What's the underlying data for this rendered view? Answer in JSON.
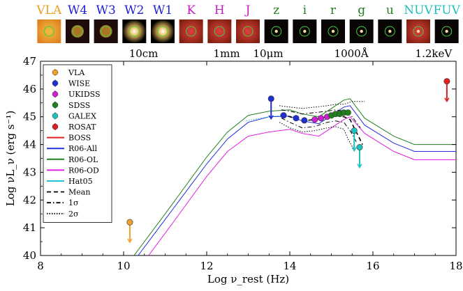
{
  "chart_data": {
    "type": "line",
    "xlabel": "Log ν_rest (Hz)",
    "ylabel": "Log νL_ν (erg s⁻¹)",
    "xlim": [
      8,
      18
    ],
    "ylim": [
      40,
      47
    ],
    "x_ticks": [
      "8",
      "10",
      "12",
      "14",
      "16",
      "18"
    ],
    "y_ticks": [
      "40",
      "41",
      "42",
      "43",
      "44",
      "45",
      "46",
      "47"
    ],
    "top_axis_labels": [
      {
        "x": 10.48,
        "label": "10cm"
      },
      {
        "x": 12.48,
        "label": "1mm"
      },
      {
        "x": 13.48,
        "label": "10μm"
      },
      {
        "x": 15.48,
        "label": "1000Å"
      },
      {
        "x": 17.46,
        "label": "1.2keV"
      }
    ],
    "bands": [
      {
        "label": "VLA",
        "color": "#e8a020"
      },
      {
        "label": "W4",
        "color": "#2020d0"
      },
      {
        "label": "W3",
        "color": "#2020d0"
      },
      {
        "label": "W2",
        "color": "#2020d0"
      },
      {
        "label": "W1",
        "color": "#2020d0"
      },
      {
        "label": "K",
        "color": "#c020c0"
      },
      {
        "label": "H",
        "color": "#c020c0"
      },
      {
        "label": "J",
        "color": "#c020c0"
      },
      {
        "label": "z",
        "color": "#208020"
      },
      {
        "label": "i",
        "color": "#208020"
      },
      {
        "label": "r",
        "color": "#208020"
      },
      {
        "label": "g",
        "color": "#208020"
      },
      {
        "label": "u",
        "color": "#208020"
      },
      {
        "label": "NUV",
        "color": "#20c0c0"
      },
      {
        "label": "FUV",
        "color": "#20c0c0"
      }
    ],
    "legend": {
      "placement": "left",
      "entries": [
        {
          "label": "VLA",
          "kind": "point",
          "color": "#f0a030"
        },
        {
          "label": "WISE",
          "kind": "point",
          "color": "#2030d0"
        },
        {
          "label": "UKIDSS",
          "kind": "point",
          "color": "#d020d0"
        },
        {
          "label": "SDSS",
          "kind": "point",
          "color": "#208020"
        },
        {
          "label": "GALEX",
          "kind": "point",
          "color": "#20c0c0"
        },
        {
          "label": "ROSAT",
          "kind": "point",
          "color": "#e02020"
        },
        {
          "label": "BOSS",
          "kind": "line",
          "color": "#e02020",
          "dash": "solid"
        },
        {
          "label": "R06-All",
          "kind": "line",
          "color": "#2030e0",
          "dash": "solid"
        },
        {
          "label": "R06-OL",
          "kind": "line",
          "color": "#208020",
          "dash": "solid"
        },
        {
          "label": "R06-OD",
          "kind": "line",
          "color": "#e020e0",
          "dash": "solid"
        },
        {
          "label": "Hat05",
          "kind": "line",
          "color": "#20c0d0",
          "dash": "solid"
        },
        {
          "label": "Mean",
          "kind": "line",
          "color": "#000000",
          "dash": "dashed"
        },
        {
          "label": "1σ",
          "kind": "line",
          "color": "#000000",
          "dash": "dashdot"
        },
        {
          "label": "2σ",
          "kind": "line",
          "color": "#000000",
          "dash": "dotted"
        }
      ]
    },
    "points": [
      {
        "survey": "VLA",
        "color": "#f0a030",
        "x": 10.15,
        "y": 41.2,
        "upper_limit": true
      },
      {
        "survey": "WISE",
        "color": "#2030d0",
        "x": 13.55,
        "y": 45.65,
        "upper_limit": true
      },
      {
        "survey": "WISE",
        "color": "#2030d0",
        "x": 13.85,
        "y": 45.05,
        "upper_limit": false
      },
      {
        "survey": "WISE",
        "color": "#2030d0",
        "x": 14.15,
        "y": 44.95,
        "upper_limit": false
      },
      {
        "survey": "WISE",
        "color": "#2030d0",
        "x": 14.35,
        "y": 44.87,
        "upper_limit": false
      },
      {
        "survey": "UKIDSS",
        "color": "#d020d0",
        "x": 14.6,
        "y": 44.9,
        "upper_limit": false
      },
      {
        "survey": "UKIDSS",
        "color": "#d020d0",
        "x": 14.75,
        "y": 44.95,
        "upper_limit": false
      },
      {
        "survey": "UKIDSS",
        "color": "#d020d0",
        "x": 14.9,
        "y": 45.0,
        "upper_limit": false
      },
      {
        "survey": "SDSS",
        "color": "#208020",
        "x": 15.0,
        "y": 45.05,
        "upper_limit": false
      },
      {
        "survey": "SDSS",
        "color": "#208020",
        "x": 15.1,
        "y": 45.1,
        "upper_limit": false
      },
      {
        "survey": "SDSS",
        "color": "#208020",
        "x": 15.2,
        "y": 45.1,
        "upper_limit": false
      },
      {
        "survey": "SDSS",
        "color": "#208020",
        "x": 15.3,
        "y": 45.15,
        "upper_limit": false
      },
      {
        "survey": "SDSS",
        "color": "#208020",
        "x": 15.4,
        "y": 45.15,
        "upper_limit": false
      },
      {
        "survey": "GALEX",
        "color": "#20c0c0",
        "x": 15.55,
        "y": 44.5,
        "upper_limit": true
      },
      {
        "survey": "GALEX",
        "color": "#20c0c0",
        "x": 15.68,
        "y": 43.9,
        "upper_limit": true
      },
      {
        "survey": "ROSAT",
        "color": "#e02020",
        "x": 17.78,
        "y": 46.28,
        "upper_limit": true
      }
    ],
    "lines": [
      {
        "name": "R06-All",
        "color": "#2030e0",
        "dash": "solid",
        "x": [
          10.35,
          11.0,
          12.0,
          12.5,
          13.0,
          13.5,
          14.0,
          14.3,
          14.7,
          15.0,
          15.3,
          15.45,
          15.8,
          16.5,
          17.0,
          18.0
        ],
        "y": [
          40.0,
          41.3,
          43.3,
          44.2,
          44.8,
          45.0,
          45.02,
          44.85,
          44.75,
          45.05,
          45.35,
          45.4,
          44.7,
          44.05,
          43.75,
          43.75
        ]
      },
      {
        "name": "R06-OL",
        "color": "#208020",
        "dash": "solid",
        "x": [
          10.25,
          11.0,
          12.0,
          12.5,
          13.0,
          13.5,
          14.0,
          14.3,
          14.7,
          15.0,
          15.3,
          15.45,
          15.8,
          16.5,
          17.0,
          18.0
        ],
        "y": [
          40.0,
          41.5,
          43.55,
          44.45,
          45.05,
          45.2,
          45.25,
          45.1,
          45.0,
          45.3,
          45.6,
          45.65,
          44.95,
          44.3,
          44.0,
          44.0
        ]
      },
      {
        "name": "R06-OD",
        "color": "#e020e0",
        "dash": "solid",
        "x": [
          10.6,
          11.0,
          12.0,
          12.5,
          13.0,
          13.5,
          14.0,
          14.3,
          14.7,
          15.0,
          15.3,
          15.45,
          15.8,
          16.5,
          17.0,
          18.0
        ],
        "y": [
          40.0,
          40.8,
          42.85,
          43.75,
          44.3,
          44.45,
          44.55,
          44.4,
          44.3,
          44.6,
          44.9,
          45.0,
          44.4,
          43.75,
          43.45,
          43.45
        ]
      },
      {
        "name": "Hat05",
        "color": "#20c0d0",
        "dash": "dotted",
        "x": [
          12.95,
          13.2,
          13.5,
          13.8
        ],
        "y": [
          44.85,
          44.92,
          45.0,
          45.05
        ]
      },
      {
        "name": "Mean",
        "color": "#000000",
        "dash": "dashed",
        "x": [
          13.8,
          14.0,
          14.3,
          14.6,
          14.9,
          15.1,
          15.3,
          15.45,
          15.55,
          15.65,
          15.75
        ],
        "y": [
          45.1,
          45.0,
          44.85,
          44.9,
          45.0,
          45.05,
          45.0,
          44.9,
          44.6,
          44.3,
          44.0
        ]
      },
      {
        "name": "1σ+",
        "color": "#000000",
        "dash": "dashdot",
        "x": [
          13.8,
          14.0,
          14.3,
          14.6,
          14.9,
          15.1,
          15.3,
          15.5,
          15.7
        ],
        "y": [
          45.25,
          45.2,
          45.1,
          45.15,
          45.2,
          45.25,
          45.2,
          45.0,
          44.6
        ]
      },
      {
        "name": "1σ-",
        "color": "#000000",
        "dash": "dashdot",
        "x": [
          13.8,
          14.0,
          14.3,
          14.6,
          14.9,
          15.1,
          15.3,
          15.45,
          15.6
        ],
        "y": [
          44.95,
          44.8,
          44.6,
          44.65,
          44.8,
          44.85,
          44.8,
          44.5,
          44.1
        ]
      },
      {
        "name": "2σ+",
        "color": "#000000",
        "dash": "dotted",
        "x": [
          13.75,
          14.0,
          14.3,
          14.6,
          14.9,
          15.1,
          15.3,
          15.5,
          15.8
        ],
        "y": [
          45.4,
          45.35,
          45.3,
          45.35,
          45.4,
          45.45,
          45.45,
          45.55,
          45.55
        ]
      },
      {
        "name": "2σ-",
        "color": "#000000",
        "dash": "dotted",
        "x": [
          13.75,
          14.0,
          14.3,
          14.6,
          14.9,
          15.1,
          15.3,
          15.4,
          15.55
        ],
        "y": [
          44.8,
          44.6,
          44.45,
          44.5,
          44.6,
          44.65,
          44.55,
          44.2,
          43.8
        ]
      },
      {
        "name": "BOSS",
        "color": "#e02020",
        "dash": "solid",
        "x": [
          14.95,
          15.05,
          15.15,
          15.25,
          15.35,
          15.45
        ],
        "y": [
          45.0,
          45.05,
          45.1,
          45.05,
          45.15,
          45.2
        ]
      }
    ]
  }
}
